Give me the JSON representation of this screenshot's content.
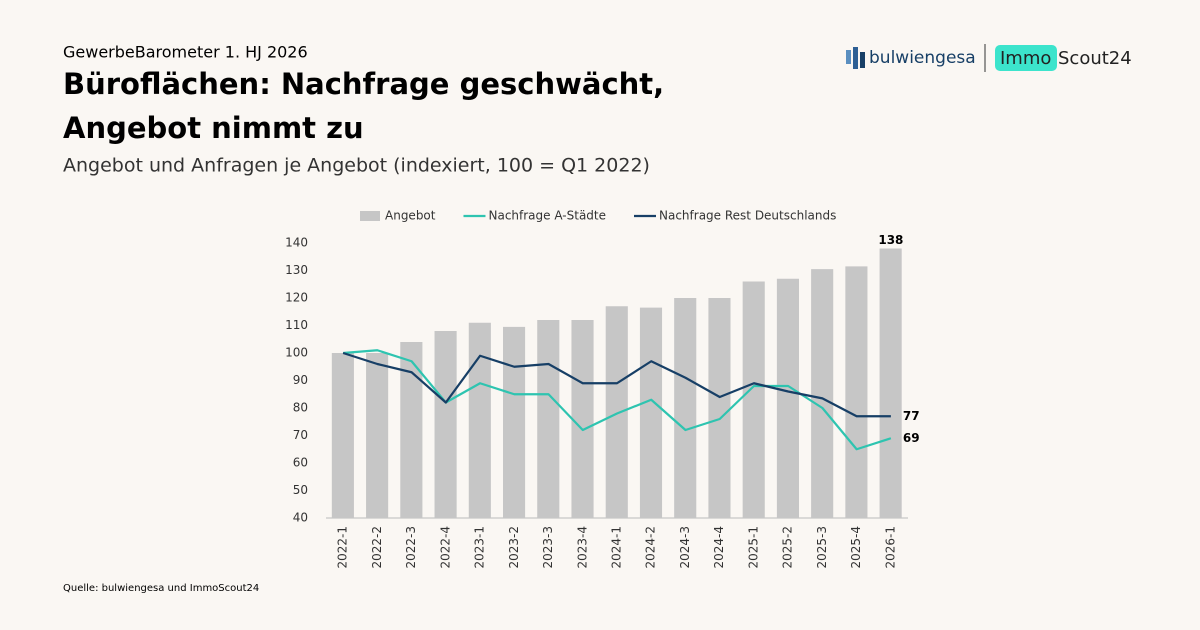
{
  "header": {
    "kicker": "GewerbeBarometer 1. HJ 2026",
    "title_lines": [
      "Büroflächen: Nachfrage geschwächt,",
      "Angebot nimmt zu"
    ],
    "description": "Angebot und Anfragen je Angebot (indexiert, 100 = Q1 2022)",
    "logo_left": "bulwiengesa",
    "logo_right_a": "Immo",
    "logo_right_b": "Scout24"
  },
  "source": "Quelle: bulwiengesa und ImmoScout24",
  "chart_data": {
    "type": "combo",
    "categories": [
      "2022-1",
      "2022-2",
      "2022-3",
      "2022-4",
      "2023-1",
      "2023-2",
      "2023-3",
      "2023-4",
      "2024-1",
      "2024-2",
      "2024-3",
      "2024-4",
      "2025-1",
      "2025-2",
      "2025-3",
      "2025-4",
      "2026-1"
    ],
    "series": [
      {
        "name": "Angebot",
        "type": "bar",
        "color": "#c6c6c6",
        "label_last": true,
        "values": [
          100,
          100,
          104,
          108,
          111,
          109.5,
          112,
          112,
          117,
          116.5,
          120,
          120,
          126,
          127,
          130.5,
          131.5,
          138
        ]
      },
      {
        "name": "Nachfrage A-Städte",
        "type": "line",
        "color": "#2ec4b0",
        "label_last": true,
        "values": [
          100,
          101,
          97,
          82,
          89,
          85,
          85,
          72,
          78,
          83,
          72,
          76,
          88,
          88,
          80,
          65,
          69
        ]
      },
      {
        "name": "Nachfrage Rest Deutschlands",
        "type": "line",
        "color": "#173f66",
        "label_last": true,
        "values": [
          100,
          96,
          93,
          82,
          99,
          95,
          96,
          89,
          89,
          97,
          91,
          84,
          89,
          86,
          83.5,
          77,
          77
        ]
      }
    ],
    "ylim": [
      40,
      140
    ],
    "yticks": [
      40,
      50,
      60,
      70,
      80,
      90,
      100,
      110,
      120,
      130,
      140
    ],
    "grid": false,
    "legend": "top"
  }
}
